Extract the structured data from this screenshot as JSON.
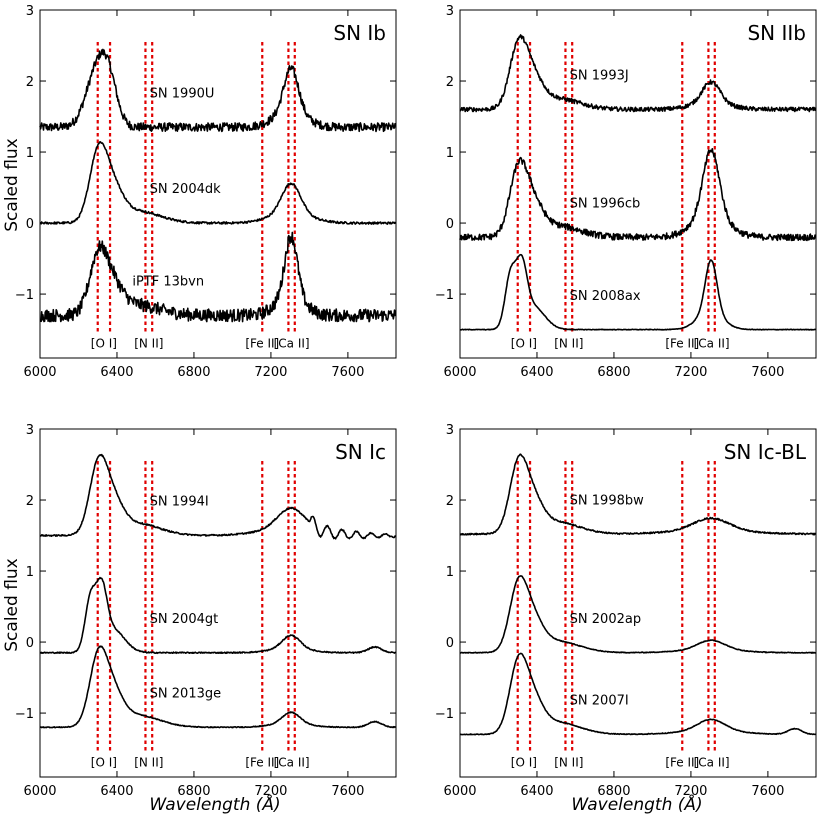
{
  "figure": {
    "ylabel": "Scaled flux",
    "xlabel": "Wavelength (Å)"
  },
  "chart_data": [
    {
      "type": "line",
      "title": "SN Ib",
      "xlabel": "",
      "ylabel": "Scaled flux",
      "xlim": [
        6000,
        7850
      ],
      "ylim": [
        -1.9,
        3.0
      ],
      "xticks": [
        "6000",
        "6400",
        "6800",
        "7200",
        "7600"
      ],
      "yticks": [
        "−1",
        "0",
        "1",
        "2",
        "3"
      ],
      "line_markers": [
        {
          "label": "[O I]",
          "wavelengths": [
            6300,
            6364
          ]
        },
        {
          "label": "[N II]",
          "wavelengths": [
            6548,
            6583
          ]
        },
        {
          "label": "[Fe II]",
          "wavelengths": [
            7155
          ]
        },
        {
          "label": "[Ca II]",
          "wavelengths": [
            7291,
            7324
          ]
        }
      ],
      "series": [
        {
          "name": "SN 1990U",
          "base": 1.35,
          "amp": 0.95,
          "o_scale": 0.92,
          "ca_scale": 1.18,
          "ca_width": 38,
          "noise": 0.06,
          "profile": "flat"
        },
        {
          "name": "SN 2004dk",
          "base": 0.0,
          "amp": 1.0,
          "o_scale": 1.0,
          "ca_scale": 0.8,
          "ca_width": 48,
          "noise": 0.015,
          "profile": "peaked"
        },
        {
          "name": "iPTF 13bvn",
          "base": -1.3,
          "amp": 0.85,
          "o_scale": 1.0,
          "ca_scale": 1.6,
          "ca_width": 32,
          "noise": 0.09,
          "profile": "peaked"
        }
      ]
    },
    {
      "type": "line",
      "title": "SN IIb",
      "xlabel": "",
      "ylabel": "",
      "xlim": [
        6000,
        7850
      ],
      "ylim": [
        -1.9,
        3.0
      ],
      "xticks": [
        "6000",
        "6400",
        "6800",
        "7200",
        "7600"
      ],
      "yticks": [
        "−1",
        "0",
        "1",
        "2",
        "3"
      ],
      "line_markers": [
        {
          "label": "[O I]",
          "wavelengths": [
            6300,
            6364
          ]
        },
        {
          "label": "[N II]",
          "wavelengths": [
            6548,
            6583
          ]
        },
        {
          "label": "[Fe II]",
          "wavelengths": [
            7155
          ]
        },
        {
          "label": "[Ca II]",
          "wavelengths": [
            7291,
            7324
          ]
        }
      ],
      "series": [
        {
          "name": "SN 1993J",
          "base": 1.6,
          "amp": 0.9,
          "o_scale": 1.0,
          "ca_scale": 0.55,
          "ca_width": 45,
          "noise": 0.03,
          "profile": "peaked"
        },
        {
          "name": "SN 1996cb",
          "base": -0.2,
          "amp": 0.95,
          "o_scale": 1.0,
          "ca_scale": 1.75,
          "ca_width": 42,
          "noise": 0.045,
          "profile": "peaked"
        },
        {
          "name": "SN 2008ax",
          "base": -1.5,
          "amp": 0.95,
          "o_scale": 1.0,
          "ca_scale": 1.4,
          "ca_width": 30,
          "noise": 0.004,
          "profile": "double"
        }
      ]
    },
    {
      "type": "line",
      "title": "SN Ic",
      "xlabel": "",
      "ylabel": "Scaled flux",
      "xlim": [
        6000,
        7850
      ],
      "ylim": [
        -1.9,
        3.0
      ],
      "xticks": [
        "6000",
        "6400",
        "6800",
        "7200",
        "7600"
      ],
      "yticks": [
        "−1",
        "0",
        "1",
        "2",
        "3"
      ],
      "line_markers": [
        {
          "label": "[O I]",
          "wavelengths": [
            6300,
            6364
          ]
        },
        {
          "label": "[N II]",
          "wavelengths": [
            6548,
            6583
          ]
        },
        {
          "label": "[Fe II]",
          "wavelengths": [
            7155
          ]
        },
        {
          "label": "[Ca II]",
          "wavelengths": [
            7291,
            7324
          ]
        }
      ],
      "series": [
        {
          "name": "SN 1994I",
          "base": 1.5,
          "amp": 1.0,
          "o_scale": 1.0,
          "ca_scale": 0.55,
          "ca_width": 70,
          "noise": 0.01,
          "profile": "peaked"
        },
        {
          "name": "SN 2004gt",
          "base": -0.15,
          "amp": 0.95,
          "o_scale": 1.0,
          "ca_scale": 0.35,
          "ca_width": 45,
          "noise": 0.008,
          "profile": "double"
        },
        {
          "name": "SN 2013ge",
          "base": -1.2,
          "amp": 1.0,
          "o_scale": 1.0,
          "ca_scale": 0.3,
          "ca_width": 45,
          "noise": 0.006,
          "profile": "peaked"
        }
      ]
    },
    {
      "type": "line",
      "title": "SN Ic-BL",
      "xlabel": "",
      "ylabel": "",
      "xlim": [
        6000,
        7850
      ],
      "ylim": [
        -1.9,
        3.0
      ],
      "xticks": [
        "6000",
        "6400",
        "6800",
        "7200",
        "7600"
      ],
      "yticks": [
        "−1",
        "0",
        "1",
        "2",
        "3"
      ],
      "line_markers": [
        {
          "label": "[O I]",
          "wavelengths": [
            6300,
            6364
          ]
        },
        {
          "label": "[N II]",
          "wavelengths": [
            6548,
            6583
          ]
        },
        {
          "label": "[Fe II]",
          "wavelengths": [
            7155
          ]
        },
        {
          "label": "[Ca II]",
          "wavelengths": [
            7291,
            7324
          ]
        }
      ],
      "series": [
        {
          "name": "SN 1998bw",
          "base": 1.52,
          "amp": 0.98,
          "o_scale": 1.0,
          "ca_scale": 0.32,
          "ca_width": 90,
          "noise": 0.01,
          "profile": "peaked"
        },
        {
          "name": "SN 2002ap",
          "base": -0.15,
          "amp": 0.95,
          "o_scale": 1.0,
          "ca_scale": 0.25,
          "ca_width": 70,
          "noise": 0.005,
          "profile": "peaked"
        },
        {
          "name": "SN 2007I",
          "base": -1.3,
          "amp": 1.0,
          "o_scale": 1.0,
          "ca_scale": 0.3,
          "ca_width": 70,
          "noise": 0.005,
          "profile": "peaked"
        }
      ]
    }
  ]
}
